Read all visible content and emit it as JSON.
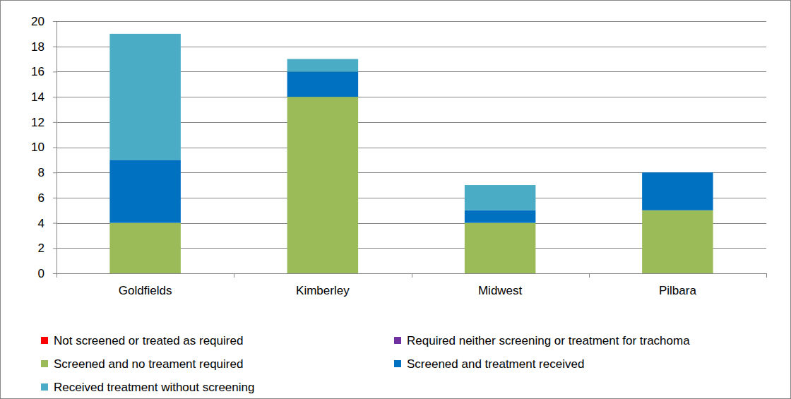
{
  "chart_data": {
    "type": "bar",
    "stacked": true,
    "grid": true,
    "legend": "bottom",
    "categories": [
      "Goldfields",
      "Kimberley",
      "Midwest",
      "Pilbara"
    ],
    "ylim": [
      0,
      20
    ],
    "yticks": [
      0,
      2,
      4,
      6,
      8,
      10,
      12,
      14,
      16,
      18,
      20
    ],
    "series": [
      {
        "name": "Not screened or treated as required",
        "color": "#ff0000",
        "values": [
          0,
          0,
          0,
          0
        ]
      },
      {
        "name": "Required neither screening or treatment for trachoma",
        "color": "#7030a0",
        "values": [
          0,
          0,
          0,
          0
        ]
      },
      {
        "name": "Screened and no treament required",
        "color": "#9bbb59",
        "values": [
          4,
          14,
          4,
          5
        ]
      },
      {
        "name": "Screened and treatment received",
        "color": "#0070c0",
        "values": [
          5,
          2,
          1,
          3
        ]
      },
      {
        "name": "Received treatment without screening",
        "color": "#4bacc6",
        "values": [
          10,
          1,
          2,
          0
        ]
      }
    ]
  }
}
